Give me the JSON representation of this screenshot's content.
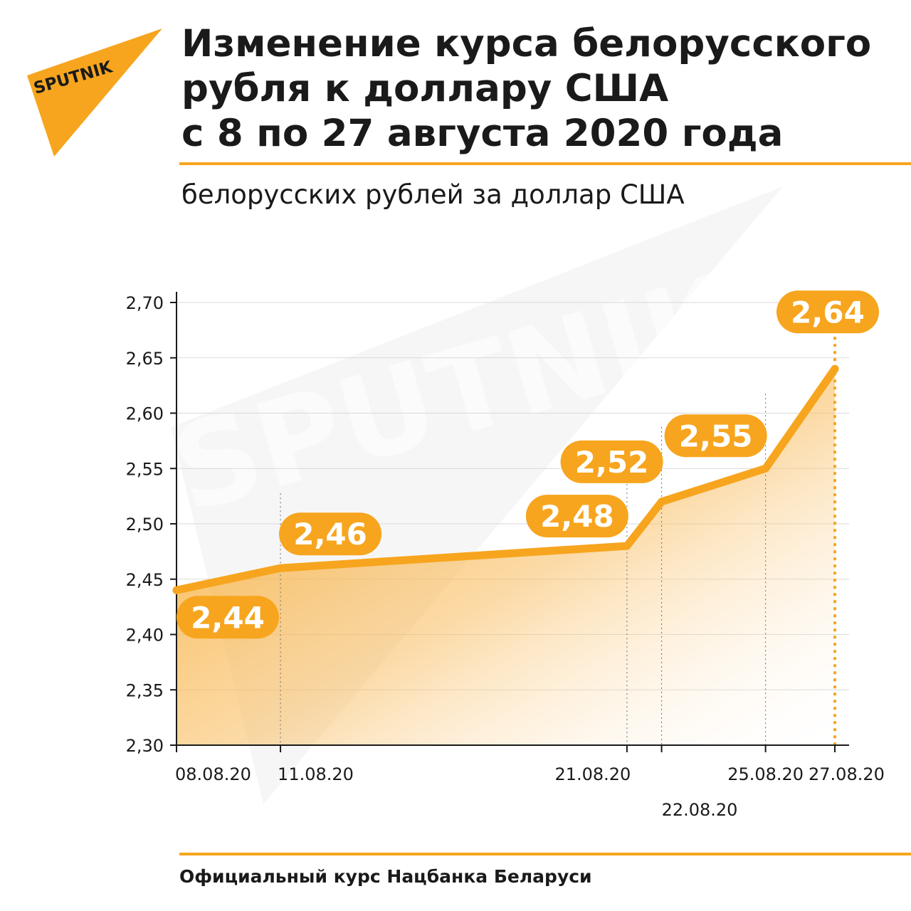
{
  "brand": {
    "logo_text": "SPUTNIK",
    "accent_color": "#f7a51e",
    "watermark_text": "SPUTNIK"
  },
  "header": {
    "title_lines": [
      "Изменение курса белорусского",
      "рубля к доллару США",
      "с 8 по 27 августа 2020 года"
    ]
  },
  "footer": {
    "source": "Официальный курс Нацбанка Беларуси"
  },
  "chart_data": {
    "type": "area",
    "title": "Изменение курса белорусского рубля к доллару США с 8 по 27 августа 2020 года",
    "ylabel": "белорусских рублей за доллар США",
    "xlabel": "",
    "x": [
      "2020-08-08",
      "2020-08-11",
      "2020-08-21",
      "2020-08-22",
      "2020-08-25",
      "2020-08-27"
    ],
    "x_tick_labels": [
      "08.08.20",
      "11.08.20",
      "21.08.20",
      "22.08.20",
      "25.08.20",
      "27.08.20"
    ],
    "values": [
      2.44,
      2.46,
      2.48,
      2.52,
      2.55,
      2.64
    ],
    "data_labels": [
      "2,44",
      "2,46",
      "2,48",
      "2,52",
      "2,55",
      "2,64"
    ],
    "ylim": [
      2.3,
      2.7
    ],
    "y_ticks": [
      2.3,
      2.35,
      2.4,
      2.45,
      2.5,
      2.55,
      2.6,
      2.65,
      2.7
    ],
    "y_tick_labels": [
      "2,30",
      "2,35",
      "2,40",
      "2,45",
      "2,50",
      "2,55",
      "2,60",
      "2,65",
      "2,70"
    ],
    "grid": true,
    "legend": "none",
    "line_color": "#f7a51e",
    "fill_color": "#f7a51e"
  }
}
